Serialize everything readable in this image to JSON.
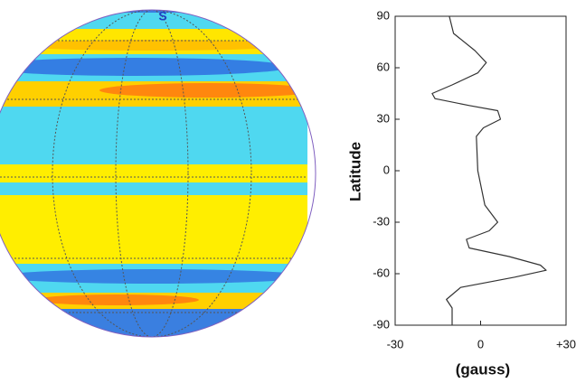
{
  "globe_label": "S",
  "chart_data": {
    "type": "line",
    "y": [
      90,
      80,
      70,
      63,
      57,
      50,
      45,
      42,
      38,
      35,
      30,
      25,
      20,
      0,
      -20,
      -30,
      -35,
      -40,
      -45,
      -50,
      -55,
      -58,
      -62,
      -68,
      -75,
      -80,
      -90
    ],
    "values": [
      -11,
      -9.5,
      -2,
      2,
      -1,
      -10,
      -17,
      -16,
      -4,
      6,
      7,
      1,
      -1.5,
      -1,
      1.5,
      6,
      3,
      -5,
      -4,
      10,
      21,
      23,
      12,
      -7,
      -12,
      -10,
      -10
    ],
    "color": "#333333",
    "xlim": [
      -30,
      30
    ],
    "xticks": [
      -30,
      0,
      {
        "value": 30,
        "label": "+30"
      }
    ],
    "ylim": [
      -90,
      90
    ],
    "yticks": [
      90,
      60,
      30,
      0,
      -30,
      -60,
      -90
    ],
    "xlabel": "(gauss)",
    "ylabel": "Latitude"
  }
}
